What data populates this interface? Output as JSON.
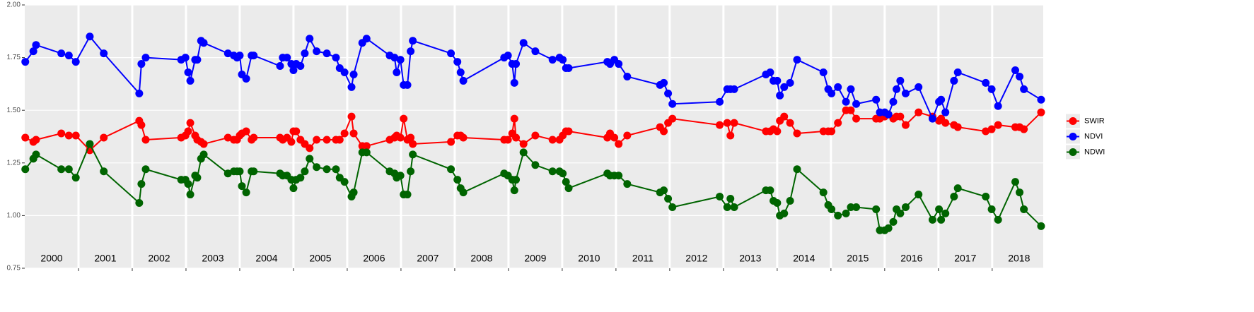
{
  "chart_data": {
    "type": "line",
    "x": [
      2000.01,
      2000.16,
      2000.21,
      2000.68,
      2000.82,
      2000.95,
      2001.21,
      2001.47,
      2002.13,
      2002.17,
      2002.25,
      2002.91,
      2002.99,
      2003.04,
      2003.08,
      2003.17,
      2003.21,
      2003.28,
      2003.33,
      2003.78,
      2003.89,
      2003.95,
      2004.0,
      2004.04,
      2004.12,
      2004.22,
      2004.26,
      2004.75,
      2004.8,
      2004.88,
      2004.96,
      2005.0,
      2005.05,
      2005.13,
      2005.21,
      2005.3,
      2005.43,
      2005.62,
      2005.79,
      2005.86,
      2005.95,
      2006.08,
      2006.12,
      2006.28,
      2006.36,
      2006.79,
      2006.88,
      2006.92,
      2006.99,
      2007.05,
      2007.12,
      2007.18,
      2007.22,
      2007.93,
      2008.05,
      2008.11,
      2008.16,
      2008.92,
      2008.99,
      2009.07,
      2009.11,
      2009.14,
      2009.28,
      2009.5,
      2009.82,
      2009.95,
      2010.01,
      2010.07,
      2010.12,
      2010.84,
      2010.89,
      2010.97,
      2011.05,
      2011.21,
      2011.82,
      2011.89,
      2011.97,
      2012.05,
      2012.93,
      2013.07,
      2013.13,
      2013.2,
      2013.79,
      2013.87,
      2013.93,
      2014.0,
      2014.05,
      2014.13,
      2014.24,
      2014.37,
      2014.86,
      2014.95,
      2015.01,
      2015.13,
      2015.28,
      2015.37,
      2015.47,
      2015.84,
      2015.91,
      2016.0,
      2016.07,
      2016.16,
      2016.22,
      2016.29,
      2016.39,
      2016.63,
      2016.89,
      2017.01,
      2017.05,
      2017.13,
      2017.29,
      2017.36,
      2017.88,
      2017.99,
      2018.11,
      2018.43,
      2018.51,
      2018.59,
      2018.91
    ],
    "series": [
      {
        "name": "SWIR",
        "color": "#ff0000",
        "values": [
          1.37,
          1.35,
          1.36,
          1.39,
          1.38,
          1.38,
          1.31,
          1.37,
          1.45,
          1.43,
          1.36,
          1.37,
          1.38,
          1.4,
          1.44,
          1.38,
          1.36,
          1.35,
          1.34,
          1.37,
          1.36,
          1.36,
          1.38,
          1.39,
          1.4,
          1.36,
          1.37,
          1.37,
          1.36,
          1.37,
          1.35,
          1.4,
          1.4,
          1.36,
          1.34,
          1.32,
          1.36,
          1.36,
          1.36,
          1.36,
          1.39,
          1.47,
          1.39,
          1.33,
          1.33,
          1.36,
          1.37,
          1.38,
          1.37,
          1.46,
          1.36,
          1.37,
          1.34,
          1.35,
          1.38,
          1.38,
          1.37,
          1.36,
          1.36,
          1.39,
          1.46,
          1.37,
          1.34,
          1.38,
          1.36,
          1.36,
          1.38,
          1.4,
          1.4,
          1.37,
          1.39,
          1.37,
          1.34,
          1.38,
          1.42,
          1.4,
          1.44,
          1.46,
          1.43,
          1.44,
          1.38,
          1.44,
          1.4,
          1.4,
          1.41,
          1.4,
          1.45,
          1.47,
          1.44,
          1.39,
          1.4,
          1.4,
          1.4,
          1.44,
          1.5,
          1.5,
          1.46,
          1.46,
          1.46,
          1.47,
          1.48,
          1.46,
          1.47,
          1.47,
          1.43,
          1.49,
          1.47,
          1.45,
          1.46,
          1.44,
          1.43,
          1.42,
          1.4,
          1.41,
          1.43,
          1.42,
          1.42,
          1.41,
          1.49
        ]
      },
      {
        "name": "NDVI",
        "color": "#0000ff",
        "values": [
          1.73,
          1.78,
          1.81,
          1.77,
          1.76,
          1.73,
          1.85,
          1.77,
          1.58,
          1.72,
          1.75,
          1.74,
          1.75,
          1.68,
          1.64,
          1.74,
          1.74,
          1.83,
          1.82,
          1.77,
          1.76,
          1.75,
          1.76,
          1.67,
          1.65,
          1.76,
          1.76,
          1.71,
          1.75,
          1.75,
          1.72,
          1.69,
          1.72,
          1.71,
          1.77,
          1.84,
          1.78,
          1.77,
          1.75,
          1.7,
          1.68,
          1.61,
          1.67,
          1.82,
          1.84,
          1.76,
          1.75,
          1.68,
          1.74,
          1.62,
          1.62,
          1.78,
          1.83,
          1.77,
          1.73,
          1.68,
          1.64,
          1.75,
          1.76,
          1.72,
          1.63,
          1.72,
          1.82,
          1.78,
          1.74,
          1.75,
          1.74,
          1.7,
          1.7,
          1.73,
          1.72,
          1.74,
          1.72,
          1.66,
          1.62,
          1.63,
          1.58,
          1.53,
          1.54,
          1.6,
          1.6,
          1.6,
          1.67,
          1.68,
          1.64,
          1.64,
          1.57,
          1.61,
          1.63,
          1.74,
          1.68,
          1.6,
          1.58,
          1.61,
          1.54,
          1.6,
          1.53,
          1.55,
          1.49,
          1.49,
          1.48,
          1.54,
          1.6,
          1.64,
          1.58,
          1.61,
          1.46,
          1.54,
          1.55,
          1.49,
          1.64,
          1.68,
          1.63,
          1.6,
          1.52,
          1.69,
          1.66,
          1.6,
          1.55
        ]
      },
      {
        "name": "NDWI",
        "color": "#006400",
        "values": [
          1.22,
          1.27,
          1.29,
          1.22,
          1.22,
          1.18,
          1.34,
          1.21,
          1.06,
          1.15,
          1.22,
          1.17,
          1.17,
          1.15,
          1.1,
          1.19,
          1.18,
          1.27,
          1.29,
          1.2,
          1.21,
          1.21,
          1.21,
          1.14,
          1.11,
          1.21,
          1.21,
          1.2,
          1.19,
          1.19,
          1.17,
          1.13,
          1.17,
          1.18,
          1.21,
          1.27,
          1.23,
          1.22,
          1.22,
          1.18,
          1.16,
          1.09,
          1.11,
          1.3,
          1.3,
          1.21,
          1.2,
          1.18,
          1.19,
          1.1,
          1.1,
          1.21,
          1.29,
          1.22,
          1.17,
          1.13,
          1.11,
          1.2,
          1.19,
          1.17,
          1.12,
          1.17,
          1.3,
          1.24,
          1.21,
          1.21,
          1.2,
          1.16,
          1.13,
          1.2,
          1.19,
          1.19,
          1.19,
          1.15,
          1.11,
          1.12,
          1.08,
          1.04,
          1.09,
          1.04,
          1.08,
          1.04,
          1.12,
          1.12,
          1.07,
          1.06,
          1.0,
          1.01,
          1.07,
          1.22,
          1.11,
          1.05,
          1.03,
          1.0,
          1.01,
          1.04,
          1.04,
          1.03,
          0.93,
          0.93,
          0.94,
          0.97,
          1.03,
          1.01,
          1.04,
          1.1,
          0.98,
          1.03,
          0.98,
          1.01,
          1.09,
          1.13,
          1.09,
          1.03,
          0.98,
          1.16,
          1.11,
          1.03,
          0.95
        ]
      }
    ],
    "xlim": [
      2000,
      2018.95
    ],
    "xticks": [
      {
        "value": 2000.5,
        "label": "2000"
      },
      {
        "value": 2001.5,
        "label": "2001"
      },
      {
        "value": 2002.5,
        "label": "2002"
      },
      {
        "value": 2003.5,
        "label": "2003"
      },
      {
        "value": 2004.5,
        "label": "2004"
      },
      {
        "value": 2005.5,
        "label": "2005"
      },
      {
        "value": 2006.5,
        "label": "2006"
      },
      {
        "value": 2007.5,
        "label": "2007"
      },
      {
        "value": 2008.5,
        "label": "2008"
      },
      {
        "value": 2009.5,
        "label": "2009"
      },
      {
        "value": 2010.5,
        "label": "2010"
      },
      {
        "value": 2011.5,
        "label": "2011"
      },
      {
        "value": 2012.5,
        "label": "2012"
      },
      {
        "value": 2013.5,
        "label": "2013"
      },
      {
        "value": 2014.5,
        "label": "2014"
      },
      {
        "value": 2015.5,
        "label": "2015"
      },
      {
        "value": 2016.5,
        "label": "2016"
      },
      {
        "value": 2017.5,
        "label": "2017"
      },
      {
        "value": 2018.5,
        "label": "2018"
      }
    ],
    "ylim": [
      0.75,
      2.0
    ],
    "yticks": [
      {
        "value": 0.75,
        "label": "0.75"
      },
      {
        "value": 1.0,
        "label": "1.00"
      },
      {
        "value": 1.25,
        "label": "1.25"
      },
      {
        "value": 1.5,
        "label": "1.50"
      },
      {
        "value": 1.75,
        "label": "1.75"
      },
      {
        "value": 2.0,
        "label": "2.00"
      }
    ],
    "grid": true,
    "legend": "right"
  }
}
